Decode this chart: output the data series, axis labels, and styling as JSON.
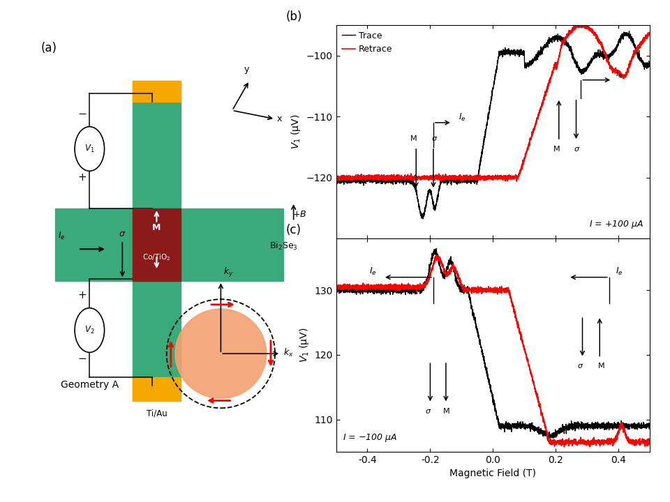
{
  "fig_bg": "#ffffff",
  "panel_a_label": "(a)",
  "panel_b_label": "(b)",
  "panel_c_label": "(c)",
  "geometry_label": "Geometry A",
  "bi2se3_label": "Bi$_2$Se$_3$",
  "co_tio2_label": "Co/TiO$_2$",
  "ti_au_label": "Ti/Au",
  "legend_trace": "Trace",
  "legend_retrace": "Retrace",
  "b_ylabel": "$V_1$ (μV)",
  "b_xlabel": "Magnetic Field (T)",
  "b_annotation": "$I$ = +100 μA",
  "c_annotation": "$I$ = −100 μA",
  "b_ylim": [
    -130,
    -95
  ],
  "b_yticks": [
    -120,
    -110,
    -100
  ],
  "c_ylim": [
    105,
    138
  ],
  "c_yticks": [
    110,
    120,
    130
  ],
  "xlim": [
    -0.5,
    0.5
  ],
  "xticks": [
    -0.4,
    -0.2,
    0.0,
    0.2,
    0.4
  ],
  "xtick_labels": [
    "-0.4",
    "-0.2",
    "0.0",
    "0.2",
    "0.4"
  ],
  "color_teal": "#3AAA7A",
  "color_orange": "#F5A800",
  "color_dark_red": "#8B1A1A",
  "color_salmon": "#F4A070"
}
